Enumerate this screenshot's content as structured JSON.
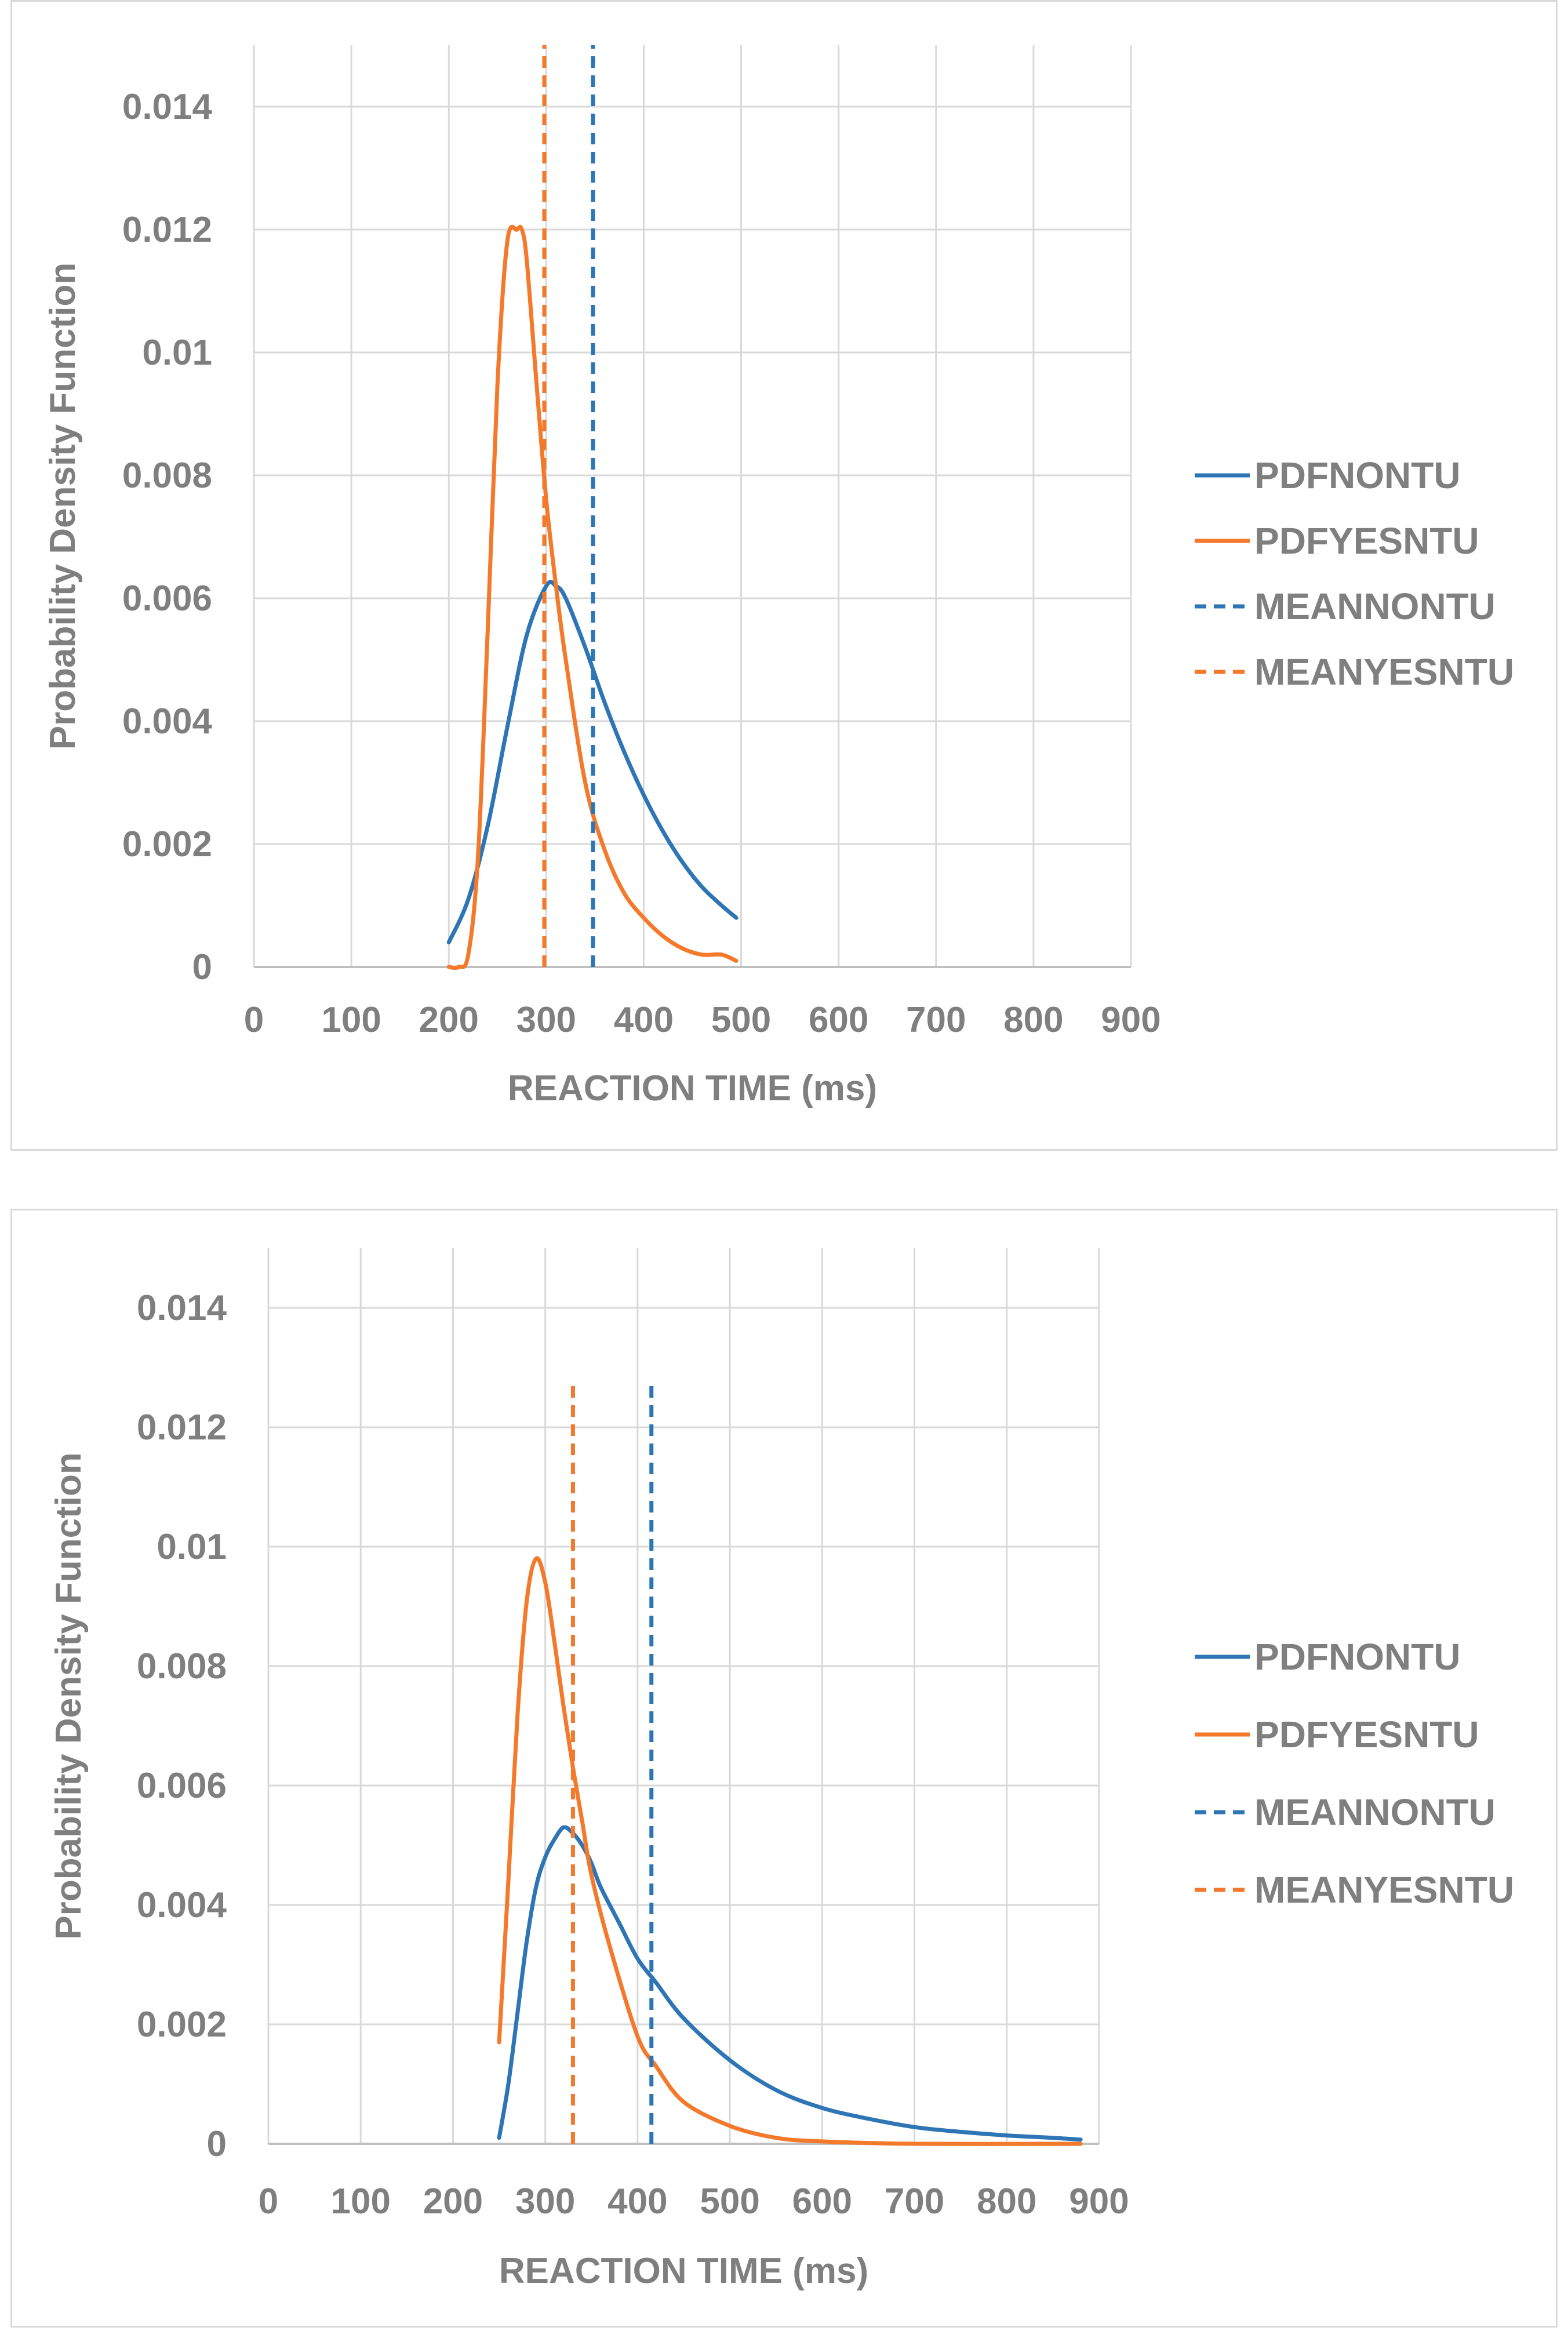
{
  "colors": {
    "blue": "#2e75b6",
    "orange": "#f4792b",
    "text": "#7f7f7f",
    "grid": "#d9d9d9"
  },
  "chart_data": [
    {
      "type": "line",
      "xlabel": "REACTION TIME (ms)",
      "ylabel": "Probability Density Function",
      "xlim": [
        0,
        900
      ],
      "ylim": [
        0,
        0.015
      ],
      "x_ticks": [
        "0",
        "100",
        "200",
        "300",
        "400",
        "500",
        "600",
        "700",
        "800",
        "900"
      ],
      "y_ticks": [
        "0",
        "0.002",
        "0.004",
        "0.006",
        "0.008",
        "0.01",
        "0.012",
        "0.014"
      ],
      "legend_position": "right",
      "series": [
        {
          "name": "PDFNONTU",
          "style": "solid",
          "color": "#2e75b6",
          "x": [
            200,
            220,
            240,
            260,
            280,
            300,
            310,
            320,
            340,
            360,
            380,
            400,
            420,
            440,
            460,
            480,
            495
          ],
          "y": [
            0.0004,
            0.0011,
            0.0023,
            0.0039,
            0.0054,
            0.0062,
            0.0062,
            0.006,
            0.0052,
            0.0043,
            0.0035,
            0.0028,
            0.0022,
            0.0017,
            0.0013,
            0.001,
            0.0008
          ]
        },
        {
          "name": "PDFYESNTU",
          "style": "solid",
          "color": "#f4792b",
          "x": [
            200,
            210,
            220,
            230,
            240,
            250,
            260,
            270,
            275,
            280,
            290,
            300,
            310,
            320,
            340,
            360,
            380,
            400,
            420,
            440,
            460,
            480,
            495
          ],
          "y": [
            0.0,
            0.0,
            0.0002,
            0.0018,
            0.0055,
            0.0095,
            0.0118,
            0.012,
            0.012,
            0.0115,
            0.0095,
            0.0076,
            0.0062,
            0.005,
            0.003,
            0.0019,
            0.0012,
            0.0008,
            0.0005,
            0.0003,
            0.0002,
            0.0002,
            0.0001
          ]
        },
        {
          "name": "MEANNONTU",
          "style": "dashed",
          "color": "#2e75b6",
          "x": [
            348,
            348
          ],
          "y": [
            0,
            0.015
          ]
        },
        {
          "name": "MEANYESNTU",
          "style": "dashed",
          "color": "#f4792b",
          "x": [
            298,
            298
          ],
          "y": [
            0,
            0.015
          ]
        }
      ]
    },
    {
      "type": "line",
      "xlabel": "REACTION TIME (ms)",
      "ylabel": "Probability Density Function",
      "xlim": [
        0,
        900
      ],
      "ylim": [
        0,
        0.015
      ],
      "x_ticks": [
        "0",
        "100",
        "200",
        "300",
        "400",
        "500",
        "600",
        "700",
        "800",
        "900"
      ],
      "y_ticks": [
        "0",
        "0.002",
        "0.004",
        "0.006",
        "0.008",
        "0.01",
        "0.012",
        "0.014"
      ],
      "legend_position": "right",
      "series": [
        {
          "name": "PDFNONTU",
          "style": "solid",
          "color": "#2e75b6",
          "x": [
            250,
            260,
            270,
            280,
            290,
            300,
            310,
            320,
            330,
            340,
            350,
            360,
            380,
            400,
            420,
            450,
            500,
            550,
            600,
            650,
            700,
            750,
            800,
            850,
            880
          ],
          "y": [
            0.0001,
            0.001,
            0.0022,
            0.0034,
            0.0043,
            0.0048,
            0.0051,
            0.0053,
            0.0052,
            0.005,
            0.0047,
            0.0043,
            0.0037,
            0.0031,
            0.0027,
            0.0021,
            0.0014,
            0.0009,
            0.0006,
            0.00042,
            0.00028,
            0.0002,
            0.00014,
            0.0001,
            7e-05
          ]
        },
        {
          "name": "PDFYESNTU",
          "style": "solid",
          "color": "#f4792b",
          "x": [
            250,
            260,
            270,
            280,
            290,
            300,
            310,
            320,
            330,
            340,
            350,
            370,
            400,
            420,
            450,
            500,
            550,
            600,
            700,
            880
          ],
          "y": [
            0.0017,
            0.0044,
            0.0072,
            0.0091,
            0.0098,
            0.0094,
            0.0084,
            0.0073,
            0.0063,
            0.0054,
            0.0045,
            0.0033,
            0.0018,
            0.0013,
            0.0007,
            0.0003,
            0.0001,
            4e-05,
            0.0,
            0.0
          ]
        },
        {
          "name": "MEANNONTU",
          "style": "dashed",
          "color": "#2e75b6",
          "x": [
            415,
            415
          ],
          "y": [
            0,
            0.0128
          ]
        },
        {
          "name": "MEANYESNTU",
          "style": "dashed",
          "color": "#f4792b",
          "x": [
            330,
            330
          ],
          "y": [
            0,
            0.0128
          ]
        }
      ]
    }
  ]
}
